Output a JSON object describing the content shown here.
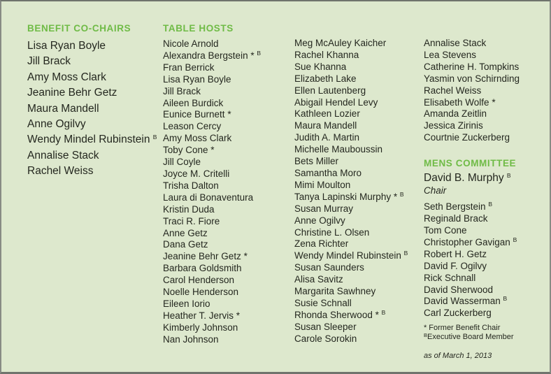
{
  "theme": {
    "background": "#dde8cd",
    "heading_color": "#6fbb46",
    "text_color": "#24271f",
    "border_color": "#878b84"
  },
  "benefit_co_chairs": {
    "heading": "BENEFIT CO-CHAIRS",
    "members": [
      {
        "name": "Lisa Ryan Boyle"
      },
      {
        "name": "Jill Brack"
      },
      {
        "name": "Amy Moss Clark"
      },
      {
        "name": "Jeanine Behr Getz"
      },
      {
        "name": "Maura Mandell"
      },
      {
        "name": "Anne Ogilvy"
      },
      {
        "name": "Wendy Mindel Rubinstein",
        "board": true
      },
      {
        "name": "Annalise Stack"
      },
      {
        "name": "Rachel Weiss"
      }
    ]
  },
  "table_hosts": {
    "heading": "TABLE HOSTS",
    "columns": [
      [
        {
          "name": "Nicole Arnold"
        },
        {
          "name": "Alexandra Bergstein",
          "star": true,
          "board": true
        },
        {
          "name": "Fran Berrick"
        },
        {
          "name": "Lisa Ryan Boyle"
        },
        {
          "name": "Jill Brack"
        },
        {
          "name": "Aileen Burdick"
        },
        {
          "name": "Eunice Burnett",
          "star": true
        },
        {
          "name": "Leason Cercy"
        },
        {
          "name": "Amy Moss Clark"
        },
        {
          "name": "Toby Cone",
          "star": true
        },
        {
          "name": "Jill Coyle"
        },
        {
          "name": "Joyce M. Critelli"
        },
        {
          "name": "Trisha Dalton"
        },
        {
          "name": "Laura di Bonaventura"
        },
        {
          "name": "Kristin Duda"
        },
        {
          "name": "Traci R. Fiore"
        },
        {
          "name": "Anne Getz"
        },
        {
          "name": "Dana Getz"
        },
        {
          "name": "Jeanine Behr Getz",
          "star": true
        },
        {
          "name": "Barbara Goldsmith"
        },
        {
          "name": "Carol Henderson"
        },
        {
          "name": "Noelle Henderson"
        },
        {
          "name": "Eileen Iorio"
        },
        {
          "name": "Heather T. Jervis",
          "star": true
        },
        {
          "name": "Kimberly Johnson"
        },
        {
          "name": "Nan Johnson"
        }
      ],
      [
        {
          "name": "Meg McAuley Kaicher"
        },
        {
          "name": "Rachel Khanna"
        },
        {
          "name": "Sue Khanna"
        },
        {
          "name": "Elizabeth Lake"
        },
        {
          "name": "Ellen Lautenberg"
        },
        {
          "name": "Abigail Hendel Levy"
        },
        {
          "name": "Kathleen Lozier"
        },
        {
          "name": "Maura Mandell"
        },
        {
          "name": "Judith A. Martin"
        },
        {
          "name": "Michelle Mauboussin"
        },
        {
          "name": "Bets Miller"
        },
        {
          "name": "Samantha Moro"
        },
        {
          "name": "Mimi Moulton"
        },
        {
          "name": "Tanya Lapinski Murphy",
          "star": true,
          "board": true
        },
        {
          "name": "Susan Murray"
        },
        {
          "name": "Anne Ogilvy"
        },
        {
          "name": "Christine L. Olsen"
        },
        {
          "name": "Zena Richter"
        },
        {
          "name": "Wendy Mindel Rubinstein",
          "board": true
        },
        {
          "name": "Susan Saunders"
        },
        {
          "name": "Alisa Savitz"
        },
        {
          "name": "Margarita Sawhney"
        },
        {
          "name": "Susie Schnall"
        },
        {
          "name": "Rhonda Sherwood",
          "star": true,
          "board": true
        },
        {
          "name": "Susan Sleeper"
        },
        {
          "name": "Carole Sorokin"
        }
      ],
      [
        {
          "name": "Annalise Stack"
        },
        {
          "name": "Lea Stevens"
        },
        {
          "name": "Catherine H. Tompkins"
        },
        {
          "name": "Yasmin von Schirnding"
        },
        {
          "name": "Rachel Weiss"
        },
        {
          "name": "Elisabeth Wolfe",
          "star": true
        },
        {
          "name": "Amanda Zeitlin"
        },
        {
          "name": "Jessica Zirinis"
        },
        {
          "name": "Courtnie Zuckerberg"
        }
      ]
    ]
  },
  "mens_committee": {
    "heading": "MENS COMMITTEE",
    "chair": [
      {
        "name": "David B. Murphy",
        "board": true
      }
    ],
    "chair_title": "Chair",
    "members": [
      {
        "name": "Seth Bergstein",
        "board": true
      },
      {
        "name": "Reginald Brack"
      },
      {
        "name": "Tom Cone"
      },
      {
        "name": "Christopher Gavigan",
        "board": true
      },
      {
        "name": "Robert H. Getz"
      },
      {
        "name": "David F. Ogilvy"
      },
      {
        "name": "Rick Schnall"
      },
      {
        "name": "David Sherwood"
      },
      {
        "name": "David Wasserman",
        "board": true
      },
      {
        "name": "Carl Zuckerberg"
      }
    ]
  },
  "footnotes": {
    "star_symbol": "*",
    "star_text": "Former Benefit Chair",
    "board_symbol": "B",
    "board_text": "Executive Board Member",
    "as_of": "as of March 1, 2013"
  }
}
